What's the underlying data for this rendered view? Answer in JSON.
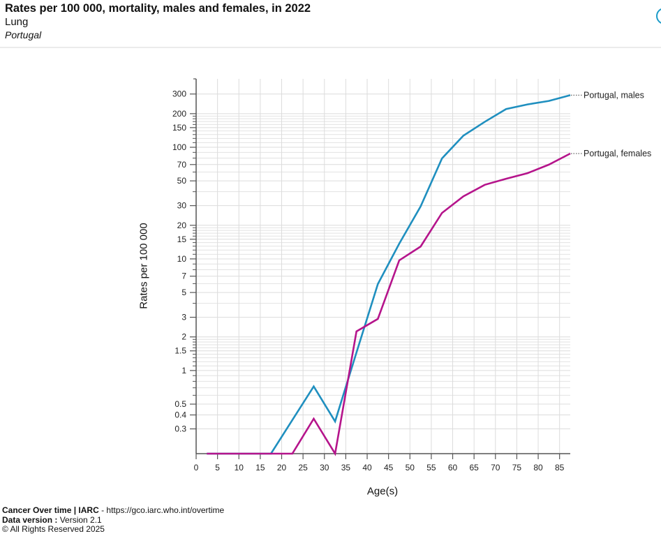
{
  "header": {
    "title": "Rates per 100 000, mortality, males and females, in 2022",
    "subtitle": "Lung",
    "population": "Portugal"
  },
  "info_button": {
    "icon": "info-circle-icon"
  },
  "footer": {
    "brand": "Cancer Over time | IARC",
    "url_separator": " - ",
    "url": "https://gco.iarc.who.int/overtime",
    "version_label": "Data version :",
    "version": " Version 2.1",
    "copyright": "© All Rights Reserved 2025"
  },
  "chart_data": {
    "type": "line",
    "title": "Rates per 100 000, mortality, males and females, in 2022",
    "subtitle": "Lung",
    "xlabel": "Age(s)",
    "ylabel": "Rates per 100 000",
    "yscale": "log",
    "xlim": [
      0,
      87.5
    ],
    "ylim": [
      0.18,
      410
    ],
    "grid": true,
    "legend": "right (end-of-line labels)",
    "x": [
      2.5,
      7.5,
      12.5,
      17.5,
      22.5,
      27.5,
      32.5,
      37.5,
      42.5,
      47.5,
      52.5,
      57.5,
      62.5,
      67.5,
      72.5,
      77.5,
      82.5,
      87.5
    ],
    "xticks": [
      0,
      5,
      10,
      15,
      20,
      25,
      30,
      35,
      40,
      45,
      50,
      55,
      60,
      65,
      70,
      75,
      80,
      85
    ],
    "xtick_labels": [
      "0",
      "5",
      "10",
      "15",
      "20",
      "25",
      "30",
      "35",
      "40",
      "45",
      "50",
      "55",
      "60",
      "65",
      "70",
      "75",
      "80",
      "85"
    ],
    "yticks": [
      0.3,
      0.4,
      0.5,
      1,
      1.5,
      2,
      3,
      5,
      7,
      10,
      15,
      20,
      30,
      50,
      70,
      100,
      150,
      200,
      300
    ],
    "ytick_labels": [
      "0.3",
      "0.4",
      "0.5",
      "1",
      "1.5",
      "2",
      "3",
      "5",
      "7",
      "10",
      "15",
      "20",
      "30",
      "50",
      "70",
      "100",
      "150",
      "200",
      "300"
    ],
    "y_minor_ticks": [
      0.6,
      0.7,
      0.8,
      0.9,
      1.1,
      1.2,
      1.3,
      1.4,
      1.6,
      1.7,
      1.8,
      1.9,
      4,
      6,
      8,
      9,
      11,
      12,
      13,
      14,
      16,
      17,
      18,
      19,
      40,
      60,
      80,
      90,
      110,
      120,
      130,
      140,
      160,
      170,
      180,
      190
    ],
    "series": [
      {
        "name": "Portugal, males",
        "color": "#1f8fbf",
        "values": [
          0,
          0,
          0,
          0,
          0.36,
          0.72,
          0.35,
          1.45,
          5.95,
          13.7,
          29.5,
          79.5,
          127,
          169,
          220,
          242,
          260,
          293
        ]
      },
      {
        "name": "Portugal, females",
        "color": "#b5148b",
        "values": [
          0,
          0,
          0,
          0,
          0,
          0.37,
          0,
          2.24,
          2.9,
          9.7,
          12.9,
          25.8,
          36.3,
          46.1,
          52.2,
          58.6,
          69.9,
          87.9
        ]
      }
    ]
  }
}
